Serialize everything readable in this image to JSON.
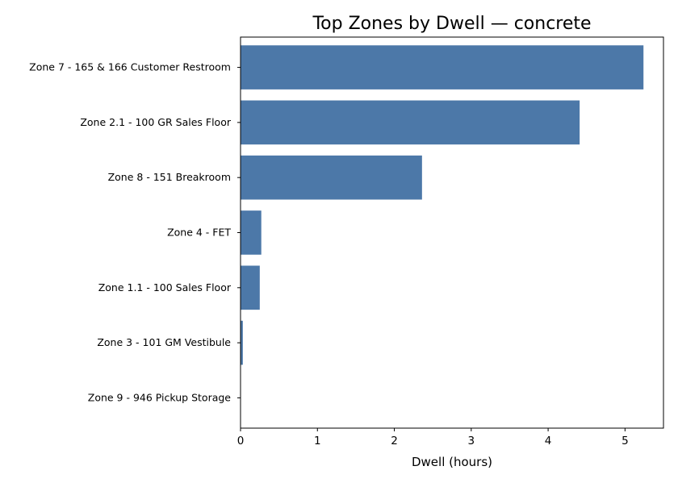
{
  "chart_data": {
    "type": "bar",
    "orientation": "horizontal",
    "title": "Top Zones by Dwell — concrete",
    "xlabel": "Dwell (hours)",
    "ylabel": "",
    "xlim": [
      0,
      5.5
    ],
    "xticks": [
      0,
      1,
      2,
      3,
      4,
      5
    ],
    "grid": false,
    "categories": [
      "Zone 7 - 165 & 166 Customer Restroom",
      "Zone 2.1 - 100 GR Sales Floor",
      "Zone 8 - 151 Breakroom",
      "Zone 4 - FET",
      "Zone 1.1 - 100 Sales Floor",
      "Zone 3 - 101 GM Vestibule",
      "Zone 9 - 946 Pickup Storage"
    ],
    "values": [
      5.24,
      4.41,
      2.36,
      0.27,
      0.25,
      0.03,
      0.0
    ],
    "bar_color": "#4c78a8"
  }
}
